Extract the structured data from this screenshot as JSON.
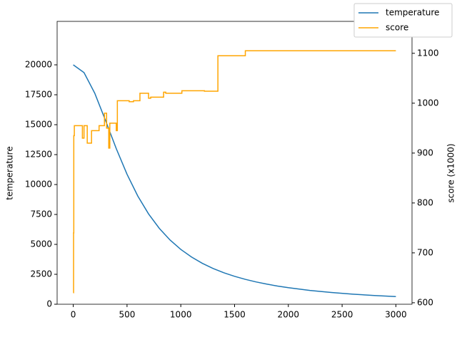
{
  "chart_data": {
    "type": "line",
    "xlim": [
      -150,
      3150
    ],
    "xticks": [
      0,
      500,
      1000,
      1500,
      2000,
      2500,
      3000
    ],
    "ylim": [
      0,
      23630
    ],
    "yticks": [
      0,
      2500,
      5000,
      7500,
      10000,
      12500,
      15000,
      17500,
      20000
    ],
    "y2lim": [
      597,
      1164
    ],
    "y2ticks": [
      600,
      700,
      800,
      900,
      1000,
      1100
    ],
    "ylabel": "temperature",
    "y2label": "score (x1000)",
    "legend": "upper right outside",
    "series": [
      {
        "name": "temperature",
        "color": "#1f77b4",
        "x": [
          0,
          100,
          200,
          300,
          400,
          500,
          600,
          700,
          800,
          900,
          1000,
          1100,
          1200,
          1300,
          1400,
          1500,
          1600,
          1700,
          1800,
          1900,
          2000,
          2200,
          2400,
          2600,
          2800,
          3000
        ],
        "values": [
          20000,
          19349,
          17627,
          15349,
          12998,
          10859,
          9042,
          7548,
          6340,
          5366,
          4580,
          3942,
          3420,
          2989,
          2632,
          2332,
          2079,
          1864,
          1680,
          1520,
          1382,
          1156,
          981,
          842,
          730,
          639
        ]
      },
      {
        "name": "score",
        "color": "#ffa500",
        "axis": "y2",
        "x": [
          0,
          3,
          3,
          5,
          5,
          10,
          10,
          85,
          85,
          100,
          100,
          130,
          130,
          170,
          170,
          240,
          240,
          290,
          290,
          310,
          310,
          330,
          330,
          340,
          340,
          400,
          400,
          410,
          410,
          520,
          520,
          560,
          560,
          620,
          620,
          700,
          700,
          720,
          720,
          840,
          840,
          860,
          860,
          1010,
          1010,
          1220,
          1220,
          1345,
          1345,
          1600,
          1600,
          3000
        ],
        "values": [
          620,
          620,
          740,
          740,
          935,
          935,
          955,
          955,
          930,
          930,
          955,
          955,
          920,
          920,
          945,
          945,
          955,
          955,
          980,
          980,
          950,
          950,
          910,
          910,
          960,
          960,
          945,
          945,
          1005,
          1005,
          1003,
          1003,
          1005,
          1005,
          1020,
          1020,
          1010,
          1010,
          1012,
          1012,
          1022,
          1022,
          1020,
          1020,
          1025,
          1025,
          1024,
          1024,
          1095,
          1095,
          1105,
          1105
        ]
      }
    ]
  }
}
